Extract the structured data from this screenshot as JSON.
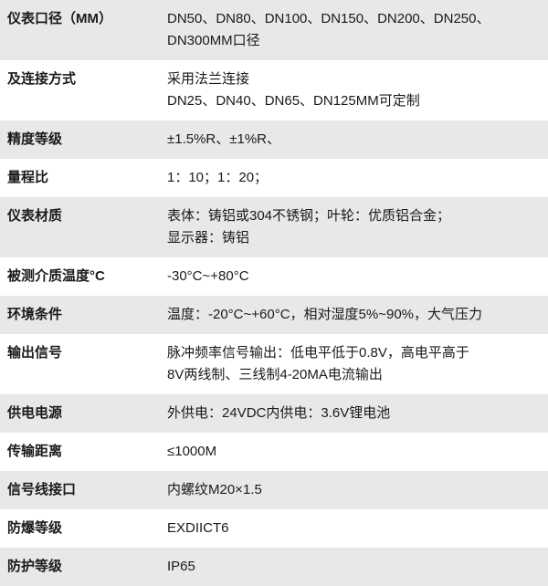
{
  "table": {
    "background_odd": "#e8e8e8",
    "background_even": "#ffffff",
    "text_color": "#1a1a1a",
    "label_fontsize": 15,
    "value_fontsize": 15,
    "label_fontweight": 600,
    "rows": [
      {
        "label": "仪表口径（MM）",
        "values": [
          "DN50、DN80、DN100、DN150、DN200、DN250、",
          "DN300MM口径"
        ]
      },
      {
        "label": "及连接方式",
        "values": [
          "采用法兰连接",
          "DN25、DN40、DN65、DN125MM可定制"
        ]
      },
      {
        "label": "精度等级",
        "values": [
          "±1.5%R、±1%R、"
        ]
      },
      {
        "label": "量程比",
        "values": [
          "1：10；1：20；"
        ]
      },
      {
        "label": "仪表材质",
        "values": [
          "表体：铸铝或304不锈钢；叶轮：优质铝合金；",
          "显示器：铸铝"
        ]
      },
      {
        "label": "被测介质温度°C",
        "values": [
          "-30°C~+80°C"
        ]
      },
      {
        "label": "环境条件",
        "values": [
          "温度：-20°C~+60°C，相对湿度5%~90%，大气压力"
        ]
      },
      {
        "label": "输出信号",
        "values": [
          "脉冲频率信号输出：低电平低于0.8V，高电平高于",
          "8V两线制、三线制4-20MA电流输出"
        ]
      },
      {
        "label": "供电电源",
        "values": [
          "外供电：24VDC内供电：3.6V锂电池"
        ]
      },
      {
        "label": "传输距离",
        "values": [
          "≤1000M"
        ]
      },
      {
        "label": "信号线接口",
        "values": [
          "内螺纹M20×1.5"
        ]
      },
      {
        "label": "防爆等级",
        "values": [
          "EXDIICT6"
        ]
      },
      {
        "label": "防护等级",
        "values": [
          "IP65"
        ]
      }
    ]
  }
}
